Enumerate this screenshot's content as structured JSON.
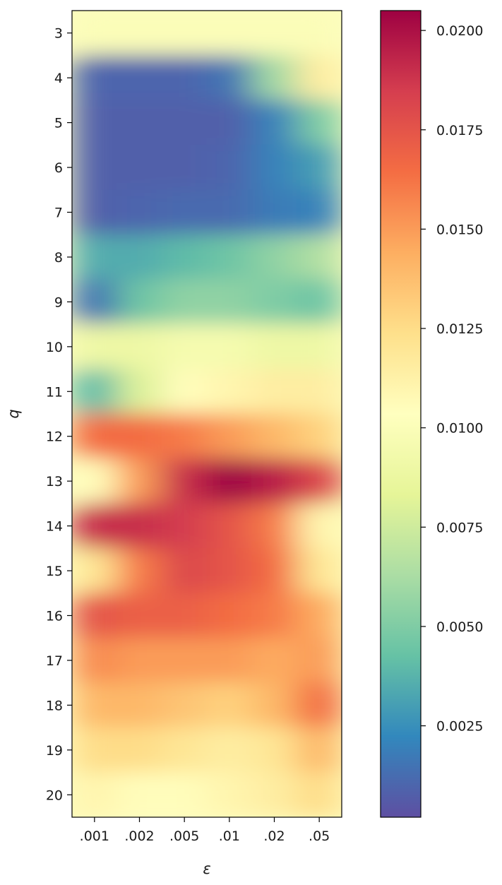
{
  "chart_data": {
    "type": "heatmap",
    "title": "",
    "xlabel": "ε",
    "ylabel": "q",
    "x_categories": [
      ".001",
      ".002",
      ".005",
      ".01",
      ".02",
      ".05"
    ],
    "y_categories": [
      "3",
      "4",
      "5",
      "6",
      "7",
      "8",
      "9",
      "10",
      "11",
      "12",
      "13",
      "14",
      "15",
      "16",
      "17",
      "18",
      "19",
      "20"
    ],
    "values": [
      [
        0.01,
        0.01,
        0.01,
        0.01,
        0.01,
        0.01
      ],
      [
        0.001,
        0.001,
        0.001,
        0.0015,
        0.006,
        0.0115
      ],
      [
        0.0008,
        0.0008,
        0.0008,
        0.0008,
        0.002,
        0.005
      ],
      [
        0.0008,
        0.0008,
        0.0008,
        0.001,
        0.002,
        0.003
      ],
      [
        0.0008,
        0.001,
        0.0012,
        0.0012,
        0.0018,
        0.002
      ],
      [
        0.0035,
        0.0035,
        0.004,
        0.0045,
        0.0055,
        0.0065
      ],
      [
        0.0015,
        0.0045,
        0.0055,
        0.0055,
        0.005,
        0.0045
      ],
      [
        0.009,
        0.009,
        0.0095,
        0.0095,
        0.009,
        0.009
      ],
      [
        0.004,
        0.008,
        0.0105,
        0.011,
        0.0115,
        0.0115
      ],
      [
        0.0165,
        0.0165,
        0.016,
        0.015,
        0.014,
        0.013
      ],
      [
        0.0105,
        0.015,
        0.019,
        0.0205,
        0.0195,
        0.018
      ],
      [
        0.019,
        0.019,
        0.0185,
        0.0175,
        0.016,
        0.011
      ],
      [
        0.012,
        0.016,
        0.018,
        0.0175,
        0.0165,
        0.012
      ],
      [
        0.0175,
        0.017,
        0.017,
        0.0165,
        0.016,
        0.0145
      ],
      [
        0.0155,
        0.015,
        0.015,
        0.015,
        0.0145,
        0.015
      ],
      [
        0.014,
        0.014,
        0.0135,
        0.013,
        0.014,
        0.0165
      ],
      [
        0.0125,
        0.0125,
        0.012,
        0.0115,
        0.012,
        0.014
      ],
      [
        0.011,
        0.0105,
        0.0105,
        0.011,
        0.0115,
        0.0125
      ]
    ],
    "vmin": 0.0002,
    "vmax": 0.0205,
    "colormap": "Spectral_r",
    "colorbar": {
      "ticks": [
        0.0025,
        0.005,
        0.0075,
        0.01,
        0.0125,
        0.015,
        0.0175,
        0.02
      ],
      "tick_labels": [
        "0.0025",
        "0.0050",
        "0.0075",
        "0.0100",
        "0.0125",
        "0.0150",
        "0.0175",
        "0.0200"
      ]
    },
    "colors": [
      "#5e4fa2",
      "#3288bd",
      "#66c2a5",
      "#abdda4",
      "#e6f598",
      "#ffffbf",
      "#fee08b",
      "#fdae61",
      "#f46d43",
      "#d53e4f",
      "#9e0142"
    ],
    "grid": false,
    "interpolation": "smooth"
  }
}
